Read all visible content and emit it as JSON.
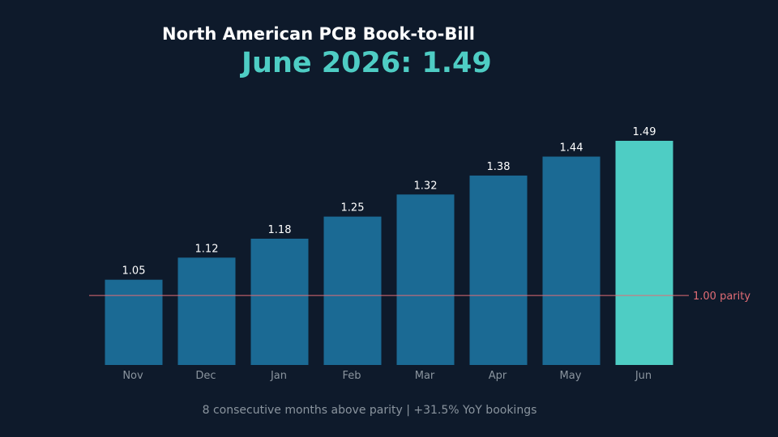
{
  "title": "North American PCB Book-to-Bill",
  "headline": "June 2026: 1.49",
  "footnote": "8 consecutive months above parity | +31.5% YoY bookings",
  "colors": {
    "background": "#0e1a2b",
    "bar": "#1b6a94",
    "highlight_bar": "#4ecdc4",
    "reference_line": "#e06c75",
    "value_label": "#ffffff",
    "tick_label": "#8a949e"
  },
  "chart_data": {
    "type": "bar",
    "categories": [
      "Nov",
      "Dec",
      "Jan",
      "Feb",
      "Mar",
      "Apr",
      "May",
      "Jun"
    ],
    "values": [
      1.05,
      1.12,
      1.18,
      1.25,
      1.32,
      1.38,
      1.44,
      1.49
    ],
    "data_labels": [
      "1.05",
      "1.12",
      "1.18",
      "1.25",
      "1.32",
      "1.38",
      "1.44",
      "1.49"
    ],
    "highlight_category": "Jun",
    "reference_line": {
      "value": 1.0,
      "label": "1.00 parity"
    },
    "ylim": [
      0.78,
      1.49
    ],
    "grid": false,
    "xlabel": "",
    "ylabel": ""
  }
}
